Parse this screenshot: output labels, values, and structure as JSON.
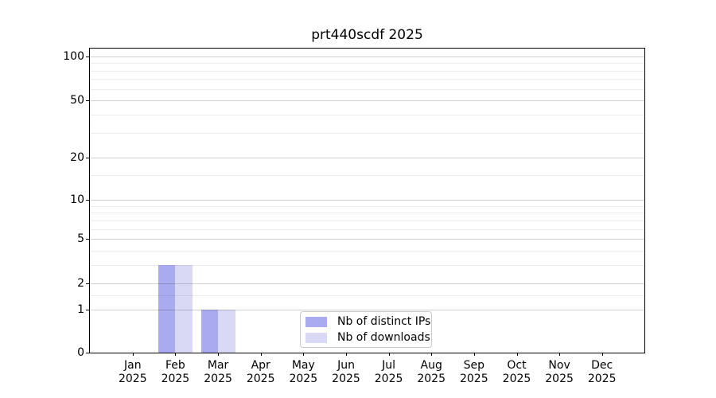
{
  "chart_data": {
    "type": "bar",
    "title": "prt440scdf 2025",
    "x_categories": [
      "Jan",
      "Feb",
      "Mar",
      "Apr",
      "May",
      "Jun",
      "Jul",
      "Aug",
      "Sep",
      "Oct",
      "Nov",
      "Dec"
    ],
    "x_sublabel": "2025",
    "series": [
      {
        "name": "Nb of distinct IPs",
        "color": "#aaaaf0",
        "values": [
          0,
          3,
          1,
          0,
          0,
          0,
          0,
          0,
          0,
          0,
          0,
          0
        ]
      },
      {
        "name": "Nb of downloads",
        "color": "#d9d9f6",
        "values": [
          0,
          3,
          1,
          0,
          0,
          0,
          0,
          0,
          0,
          0,
          0,
          0
        ]
      }
    ],
    "yscale": "log1p",
    "ylim": [
      0,
      113
    ],
    "yticks": [
      0,
      1,
      2,
      5,
      10,
      20,
      50,
      100
    ],
    "minor_yticks": [
      1.5,
      3,
      4,
      6,
      7,
      8,
      9,
      15,
      30,
      40,
      60,
      70,
      80,
      90
    ],
    "grid": "horizontal",
    "legend_position": "inside lower center"
  },
  "colors": {
    "background": "#ffffff",
    "spine": "#000000",
    "text": "#000000",
    "major_grid": "rgba(0,0,0,0.18)",
    "minor_grid": "rgba(0,0,0,0.07)",
    "legend_border": "#cccccc",
    "bar_distinct_ips": "#aaaaf0",
    "bar_downloads": "#d9d9f6"
  }
}
